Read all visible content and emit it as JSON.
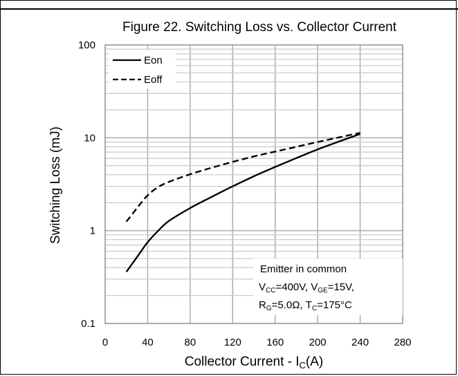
{
  "chart_data": {
    "type": "line",
    "title": "Figure 22. Switching Loss vs. Collector Current",
    "xlabel": "Collector Current - I",
    "xlabel_sub": "C",
    "xlabel_unit": "(A)",
    "ylabel": "Switching Loss (mJ)",
    "xlim": [
      0,
      280
    ],
    "ylim": [
      0.1,
      100
    ],
    "yscale": "log",
    "grid": true,
    "legend_position": "top-left",
    "x_ticks": [
      "0",
      "40",
      "80",
      "120",
      "160",
      "200",
      "240",
      "280"
    ],
    "y_ticks": [
      "0.1",
      "1",
      "10",
      "100"
    ],
    "series": [
      {
        "name": "Eon",
        "style": "solid",
        "x": [
          20,
          30,
          40,
          50,
          60,
          80,
          100,
          120,
          140,
          160,
          180,
          200,
          220,
          240
        ],
        "y": [
          0.36,
          0.52,
          0.75,
          1.0,
          1.27,
          1.75,
          2.3,
          3.0,
          3.85,
          4.85,
          6.05,
          7.5,
          9.1,
          11.0
        ]
      },
      {
        "name": "Eoff",
        "style": "dashed",
        "x": [
          20,
          30,
          40,
          50,
          60,
          80,
          100,
          120,
          140,
          160,
          180,
          200,
          220,
          240
        ],
        "y": [
          1.25,
          1.75,
          2.4,
          2.95,
          3.35,
          4.05,
          4.75,
          5.5,
          6.3,
          7.1,
          8.0,
          9.0,
          10.1,
          11.3
        ]
      }
    ],
    "annotation": {
      "line1": "Emitter in common",
      "line2_parts": [
        "V",
        "CC",
        "=400V, V",
        "GE",
        "=15V,"
      ],
      "line3_parts": [
        "R",
        "G",
        "=5.0Ω, T",
        "C",
        "=175°C"
      ]
    }
  }
}
